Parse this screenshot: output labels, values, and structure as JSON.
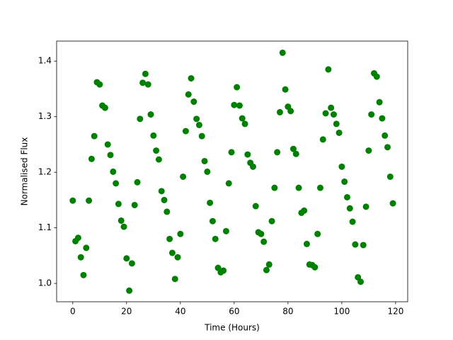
{
  "chart_data": {
    "type": "scatter",
    "x_label": "Time (Hours)",
    "y_label": "Normalised Flux",
    "color": "#008000",
    "x": [
      0,
      1,
      2,
      3,
      4,
      5,
      6,
      7,
      8,
      9,
      10,
      11,
      12,
      13,
      14,
      15,
      16,
      17,
      18,
      19,
      20,
      21,
      22,
      23,
      24,
      25,
      26,
      27,
      28,
      29,
      30,
      31,
      32,
      33,
      34,
      35,
      36,
      37,
      38,
      39,
      40,
      41,
      42,
      43,
      44,
      45,
      46,
      47,
      48,
      49,
      50,
      51,
      52,
      53,
      54,
      55,
      56,
      57,
      58,
      59,
      60,
      61,
      62,
      63,
      64,
      65,
      66,
      67,
      68,
      69,
      70,
      71,
      72,
      73,
      74,
      75,
      76,
      77,
      78,
      79,
      80,
      81,
      82,
      83,
      84,
      85,
      86,
      87,
      88,
      89,
      90,
      91,
      92,
      93,
      94,
      95,
      96,
      97,
      98,
      99,
      100,
      101,
      102,
      103,
      104,
      105,
      106,
      107,
      108,
      109,
      110,
      111,
      112,
      113,
      114,
      115,
      116,
      117,
      118,
      119
    ],
    "values": [
      1.149,
      1.076,
      1.082,
      1.047,
      1.015,
      1.064,
      1.149,
      1.224,
      1.265,
      1.362,
      1.358,
      1.32,
      1.316,
      1.25,
      1.231,
      1.201,
      1.18,
      1.143,
      1.113,
      1.102,
      1.045,
      0.987,
      1.036,
      1.141,
      1.182,
      1.296,
      1.361,
      1.377,
      1.358,
      1.304,
      1.266,
      1.239,
      1.223,
      1.166,
      1.15,
      1.129,
      1.08,
      1.055,
      1.008,
      1.047,
      1.089,
      1.192,
      1.274,
      1.34,
      1.369,
      1.327,
      1.296,
      1.285,
      1.265,
      1.22,
      1.201,
      1.145,
      1.112,
      1.08,
      1.028,
      1.02,
      1.023,
      1.094,
      1.18,
      1.236,
      1.321,
      1.353,
      1.32,
      1.297,
      1.287,
      1.232,
      1.217,
      1.21,
      1.139,
      1.092,
      1.089,
      1.075,
      1.024,
      1.034,
      1.112,
      1.172,
      1.236,
      1.308,
      1.415,
      1.349,
      1.318,
      1.31,
      1.242,
      1.233,
      1.172,
      1.127,
      1.131,
      1.071,
      1.034,
      1.033,
      1.029,
      1.089,
      1.172,
      1.259,
      1.306,
      1.385,
      1.316,
      1.304,
      1.287,
      1.271,
      1.21,
      1.183,
      1.155,
      1.135,
      1.111,
      1.07,
      1.011,
      1.003,
      1.069,
      1.138,
      1.239,
      1.304,
      1.378,
      1.372,
      1.326,
      1.297,
      1.266,
      1.245,
      1.192,
      1.144
    ],
    "xlim": [
      -6,
      124.5
    ],
    "ylim": [
      0.967,
      1.436
    ],
    "xticks": [
      0,
      20,
      40,
      60,
      80,
      100,
      120
    ],
    "yticks": [
      {
        "value": 1,
        "label": "1.0"
      },
      1.1,
      1.2,
      1.3,
      1.4
    ]
  }
}
